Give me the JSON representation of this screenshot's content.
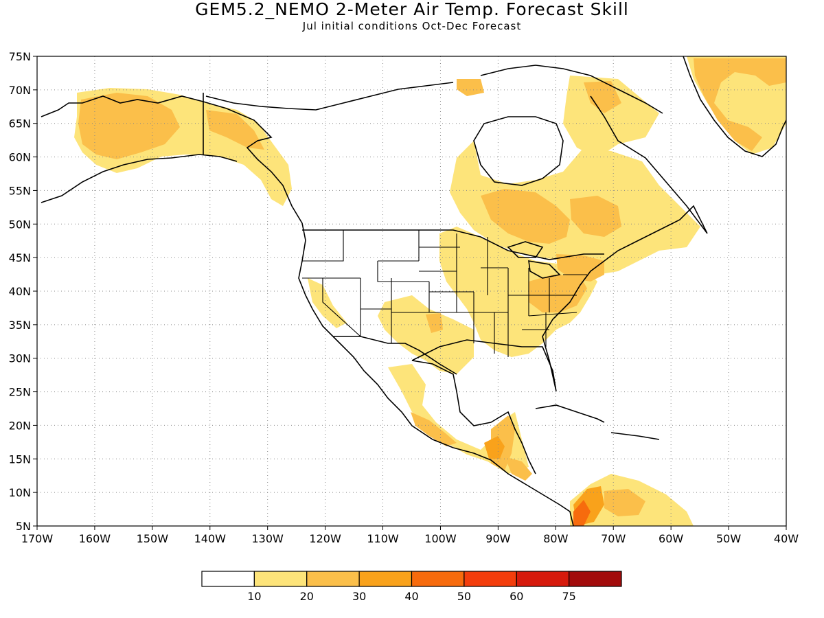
{
  "header": {
    "title": "GEM5.2_NEMO 2-Meter Air Temp. Forecast Skill",
    "subtitle": "Jul initial conditions  Oct-Dec Forecast"
  },
  "chart_data": {
    "type": "heatmap",
    "title": "GEM5.2_NEMO 2-Meter Air Temp. Forecast Skill",
    "subtitle": "Jul initial conditions  Oct-Dec Forecast",
    "map_region": "North America",
    "x_axis": {
      "ticks": [
        "170W",
        "160W",
        "150W",
        "140W",
        "130W",
        "120W",
        "110W",
        "100W",
        "90W",
        "80W",
        "70W",
        "60W",
        "50W",
        "40W"
      ],
      "range": [
        -170,
        -40
      ]
    },
    "y_axis": {
      "ticks": [
        "5N",
        "10N",
        "15N",
        "20N",
        "25N",
        "30N",
        "35N",
        "40N",
        "45N",
        "50N",
        "55N",
        "60N",
        "65N",
        "70N",
        "75N"
      ],
      "range": [
        5,
        75
      ]
    },
    "grid": "dotted",
    "colorbar": {
      "boundaries": [
        "10",
        "20",
        "30",
        "40",
        "50",
        "60",
        "75"
      ],
      "colors": [
        "#ffffff",
        "#fde47a",
        "#fbbf4a",
        "#f9a21b",
        "#f76b0d",
        "#f33d0c",
        "#d61a0c",
        "#a20b0b"
      ]
    },
    "skill_regions": [
      {
        "name": "Alaska",
        "level": "10-20"
      },
      {
        "name": "Western Alaska core",
        "level": "20-30"
      },
      {
        "name": "Eastern US",
        "level": "10-20"
      },
      {
        "name": "Ontario / Quebec",
        "level": "20-30"
      },
      {
        "name": "Greenland",
        "level": "10-30"
      },
      {
        "name": "Mexico / Central America",
        "level": "10-30"
      },
      {
        "name": "Guatemala",
        "level": "30-40"
      },
      {
        "name": "Colombia",
        "level": "40-50"
      }
    ]
  }
}
